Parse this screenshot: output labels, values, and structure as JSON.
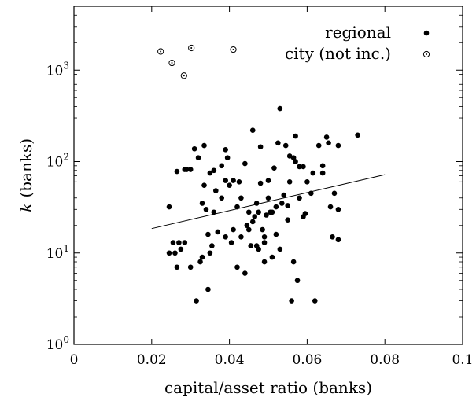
{
  "chart_data": {
    "type": "scatter",
    "xlabel": "capital/asset ratio (banks)",
    "ylabel_symbol": "k",
    "ylabel_unit": "(banks)",
    "xlim": [
      0,
      0.1
    ],
    "ylim": [
      1,
      5000
    ],
    "yscale": "log",
    "x_ticks": [
      0,
      0.02,
      0.04,
      0.06,
      0.08,
      0.1
    ],
    "x_tick_labels": [
      "0",
      "0.02",
      "0.04",
      "0.06",
      "0.08",
      "0.1"
    ],
    "y_ticks": [
      1,
      10,
      100,
      1000
    ],
    "y_tick_labels": [
      {
        "base": "10",
        "exp": "0"
      },
      {
        "base": "10",
        "exp": "1"
      },
      {
        "base": "10",
        "exp": "2"
      },
      {
        "base": "10",
        "exp": "3"
      }
    ],
    "grid": false,
    "legend_position": "top-right",
    "series": [
      {
        "name": "regional",
        "marker": "filled-circle",
        "color": "#000000",
        "points": [
          [
            0.0245,
            10
          ],
          [
            0.0245,
            32
          ],
          [
            0.0255,
            13
          ],
          [
            0.026,
            10
          ],
          [
            0.0265,
            78
          ],
          [
            0.0265,
            7
          ],
          [
            0.027,
            13
          ],
          [
            0.0275,
            11
          ],
          [
            0.0285,
            82
          ],
          [
            0.0285,
            13
          ],
          [
            0.029,
            82
          ],
          [
            0.03,
            82
          ],
          [
            0.03,
            7
          ],
          [
            0.031,
            138
          ],
          [
            0.0315,
            3
          ],
          [
            0.032,
            110
          ],
          [
            0.0325,
            8
          ],
          [
            0.033,
            9
          ],
          [
            0.033,
            35
          ],
          [
            0.0335,
            150
          ],
          [
            0.0335,
            55
          ],
          [
            0.034,
            30
          ],
          [
            0.0345,
            16
          ],
          [
            0.0345,
            4
          ],
          [
            0.035,
            75
          ],
          [
            0.035,
            10
          ],
          [
            0.0355,
            12
          ],
          [
            0.036,
            80
          ],
          [
            0.036,
            28
          ],
          [
            0.0365,
            48
          ],
          [
            0.037,
            17
          ],
          [
            0.038,
            90
          ],
          [
            0.038,
            40
          ],
          [
            0.039,
            135
          ],
          [
            0.039,
            62
          ],
          [
            0.039,
            15
          ],
          [
            0.04,
            55
          ],
          [
            0.0405,
            13
          ],
          [
            0.041,
            18
          ],
          [
            0.041,
            62
          ],
          [
            0.042,
            32
          ],
          [
            0.042,
            7
          ],
          [
            0.0425,
            60
          ],
          [
            0.043,
            15
          ],
          [
            0.043,
            40
          ],
          [
            0.044,
            95
          ],
          [
            0.044,
            6
          ],
          [
            0.0445,
            20
          ],
          [
            0.045,
            28
          ],
          [
            0.045,
            18
          ],
          [
            0.0455,
            12
          ],
          [
            0.046,
            22
          ],
          [
            0.046,
            220
          ],
          [
            0.0465,
            25
          ],
          [
            0.047,
            35
          ],
          [
            0.047,
            12
          ],
          [
            0.0475,
            11
          ],
          [
            0.048,
            145
          ],
          [
            0.048,
            58
          ],
          [
            0.0485,
            18
          ],
          [
            0.049,
            8
          ],
          [
            0.049,
            13
          ],
          [
            0.049,
            15
          ],
          [
            0.0495,
            26
          ],
          [
            0.05,
            40
          ],
          [
            0.05,
            62
          ],
          [
            0.0505,
            28
          ],
          [
            0.051,
            9
          ],
          [
            0.051,
            28
          ],
          [
            0.0515,
            85
          ],
          [
            0.052,
            32
          ],
          [
            0.052,
            16
          ],
          [
            0.0525,
            160
          ],
          [
            0.053,
            380
          ],
          [
            0.053,
            11
          ],
          [
            0.0535,
            35
          ],
          [
            0.054,
            43
          ],
          [
            0.0545,
            150
          ],
          [
            0.055,
            23
          ],
          [
            0.055,
            33
          ],
          [
            0.0555,
            115
          ],
          [
            0.0555,
            60
          ],
          [
            0.0565,
            8
          ],
          [
            0.056,
            3
          ],
          [
            0.057,
            190
          ],
          [
            0.057,
            100
          ],
          [
            0.0575,
            5
          ],
          [
            0.058,
            40
          ],
          [
            0.058,
            88
          ],
          [
            0.059,
            25
          ],
          [
            0.059,
            88
          ],
          [
            0.0595,
            27
          ],
          [
            0.06,
            60
          ],
          [
            0.061,
            45
          ],
          [
            0.0615,
            75
          ],
          [
            0.062,
            3
          ],
          [
            0.063,
            150
          ],
          [
            0.064,
            90
          ],
          [
            0.064,
            75
          ],
          [
            0.065,
            185
          ],
          [
            0.0655,
            160
          ],
          [
            0.066,
            32
          ],
          [
            0.0665,
            15
          ],
          [
            0.067,
            45
          ],
          [
            0.068,
            150
          ],
          [
            0.068,
            30
          ],
          [
            0.073,
            195
          ],
          [
            0.068,
            14
          ],
          [
            0.0565,
            110
          ],
          [
            0.0455,
            12
          ],
          [
            0.0395,
            110
          ],
          [
            0.0475,
            28
          ]
        ]
      },
      {
        "name": "city (not inc.)",
        "marker": "hollow-circle-dot",
        "color": "#000000",
        "points": [
          [
            0.0223,
            1600
          ],
          [
            0.0252,
            1200
          ],
          [
            0.0283,
            870
          ],
          [
            0.0302,
            1750
          ],
          [
            0.041,
            1680
          ]
        ]
      }
    ],
    "fit_line": {
      "x": [
        0.02,
        0.08
      ],
      "y": [
        18.5,
        72
      ]
    }
  }
}
